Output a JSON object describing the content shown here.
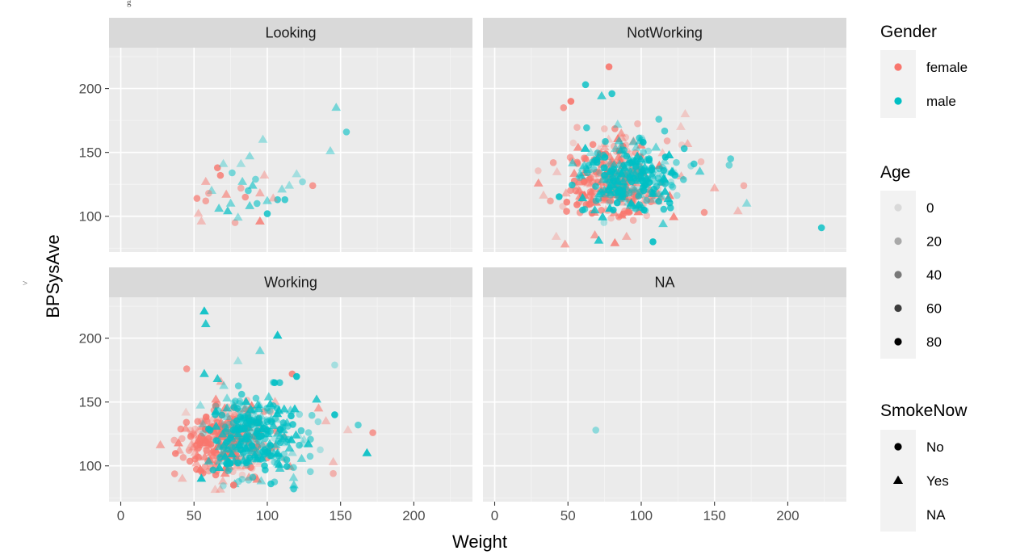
{
  "chart_data": {
    "type": "scatter",
    "xlabel": "Weight",
    "ylabel": "BPSysAve",
    "xlim": [
      -8,
      240
    ],
    "ylim": [
      72,
      232
    ],
    "x_ticks": [
      0,
      50,
      100,
      150,
      200
    ],
    "y_ticks": [
      100,
      150,
      200
    ],
    "grid": true,
    "facets": [
      "Looking",
      "NotWorking",
      "Working",
      "NA"
    ],
    "stray_text": {
      "top": "g",
      "left": ">"
    },
    "legend": {
      "placement": "right",
      "gender": {
        "title": "Gender",
        "entries": [
          {
            "label": "female",
            "color": "#F8766D"
          },
          {
            "label": "male",
            "color": "#00BFC4"
          }
        ]
      },
      "age": {
        "title": "Age",
        "entries": [
          {
            "label": "0",
            "alpha": 0.1
          },
          {
            "label": "20",
            "alpha": 0.3
          },
          {
            "label": "40",
            "alpha": 0.5
          },
          {
            "label": "60",
            "alpha": 0.75
          },
          {
            "label": "80",
            "alpha": 1.0
          }
        ]
      },
      "smoke": {
        "title": "SmokeNow",
        "entries": [
          {
            "label": "No",
            "shape": "circle"
          },
          {
            "label": "Yes",
            "shape": "triangle"
          },
          {
            "label": "NA",
            "shape": "none"
          }
        ]
      }
    },
    "panels": [
      {
        "facet": "Looking",
        "points": [
          {
            "x": 147,
            "y": 185,
            "g": "male",
            "s": "Yes",
            "a": 0.5
          },
          {
            "x": 154,
            "y": 166,
            "g": "male",
            "s": "No",
            "a": 0.6
          },
          {
            "x": 143,
            "y": 151,
            "g": "male",
            "s": "Yes",
            "a": 0.4
          },
          {
            "x": 97,
            "y": 160,
            "g": "male",
            "s": "Yes",
            "a": 0.35
          },
          {
            "x": 88,
            "y": 147,
            "g": "male",
            "s": "Yes",
            "a": 0.4
          },
          {
            "x": 82,
            "y": 141,
            "g": "male",
            "s": "Yes",
            "a": 0.3
          },
          {
            "x": 66,
            "y": 138,
            "g": "female",
            "s": "No",
            "a": 0.8
          },
          {
            "x": 68,
            "y": 132,
            "g": "female",
            "s": "No",
            "a": 0.8
          },
          {
            "x": 58,
            "y": 127,
            "g": "female",
            "s": "Yes",
            "a": 0.5
          },
          {
            "x": 76,
            "y": 134,
            "g": "male",
            "s": "No",
            "a": 0.5
          },
          {
            "x": 70,
            "y": 141,
            "g": "male",
            "s": "Yes",
            "a": 0.35
          },
          {
            "x": 83,
            "y": 127,
            "g": "male",
            "s": "Yes",
            "a": 0.5
          },
          {
            "x": 90,
            "y": 124,
            "g": "male",
            "s": "Yes",
            "a": 0.6
          },
          {
            "x": 95,
            "y": 118,
            "g": "female",
            "s": "Yes",
            "a": 0.5
          },
          {
            "x": 100,
            "y": 112,
            "g": "male",
            "s": "Yes",
            "a": 0.5
          },
          {
            "x": 107,
            "y": 113,
            "g": "male",
            "s": "No",
            "a": 0.7
          },
          {
            "x": 112,
            "y": 113,
            "g": "male",
            "s": "No",
            "a": 0.7
          },
          {
            "x": 120,
            "y": 133,
            "g": "male",
            "s": "Yes",
            "a": 0.3
          },
          {
            "x": 124,
            "y": 127,
            "g": "male",
            "s": "No",
            "a": 0.4
          },
          {
            "x": 131,
            "y": 124,
            "g": "female",
            "s": "No",
            "a": 0.7
          },
          {
            "x": 100,
            "y": 102,
            "g": "male",
            "s": "No",
            "a": 0.8
          },
          {
            "x": 95,
            "y": 96,
            "g": "female",
            "s": "Yes",
            "a": 0.8
          },
          {
            "x": 78,
            "y": 95,
            "g": "female",
            "s": "No",
            "a": 0.5
          },
          {
            "x": 80,
            "y": 99,
            "g": "male",
            "s": "Yes",
            "a": 0.4
          },
          {
            "x": 55,
            "y": 96,
            "g": "female",
            "s": "Yes",
            "a": 0.4
          },
          {
            "x": 53,
            "y": 102,
            "g": "female",
            "s": "Yes",
            "a": 0.4
          },
          {
            "x": 52,
            "y": 114,
            "g": "female",
            "s": "No",
            "a": 0.7
          },
          {
            "x": 58,
            "y": 112,
            "g": "female",
            "s": "No",
            "a": 0.6
          },
          {
            "x": 62,
            "y": 120,
            "g": "male",
            "s": "Yes",
            "a": 0.4
          },
          {
            "x": 72,
            "y": 117,
            "g": "female",
            "s": "Yes",
            "a": 0.6
          },
          {
            "x": 75,
            "y": 110,
            "g": "male",
            "s": "Yes",
            "a": 0.5
          },
          {
            "x": 85,
            "y": 115,
            "g": "female",
            "s": "No",
            "a": 0.7
          },
          {
            "x": 88,
            "y": 108,
            "g": "male",
            "s": "Yes",
            "a": 0.6
          },
          {
            "x": 92,
            "y": 129,
            "g": "male",
            "s": "No",
            "a": 0.5
          },
          {
            "x": 104,
            "y": 114,
            "g": "female",
            "s": "Yes",
            "a": 0.4
          },
          {
            "x": 110,
            "y": 121,
            "g": "male",
            "s": "Yes",
            "a": 0.4
          },
          {
            "x": 67,
            "y": 106,
            "g": "male",
            "s": "Yes",
            "a": 0.6
          },
          {
            "x": 73,
            "y": 104,
            "g": "male",
            "s": "Yes",
            "a": 0.7
          },
          {
            "x": 82,
            "y": 122,
            "g": "female",
            "s": "No",
            "a": 0.5
          },
          {
            "x": 98,
            "y": 132,
            "g": "female",
            "s": "Yes",
            "a": 0.4
          },
          {
            "x": 115,
            "y": 124,
            "g": "male",
            "s": "Yes",
            "a": 0.35
          },
          {
            "x": 60,
            "y": 118,
            "g": "female",
            "s": "No",
            "a": 0.5
          },
          {
            "x": 87,
            "y": 120,
            "g": "male",
            "s": "No",
            "a": 0.6
          },
          {
            "x": 93,
            "y": 110,
            "g": "male",
            "s": "No",
            "a": 0.6
          }
        ]
      },
      {
        "facet": "NotWorking",
        "cloud": [
          {
            "x": 82,
            "y": 128,
            "n": 260,
            "g": "female",
            "sx": 17,
            "sy": 15
          },
          {
            "x": 92,
            "y": 130,
            "n": 260,
            "g": "male",
            "sx": 17,
            "sy": 15
          }
        ],
        "points": [
          {
            "x": 78,
            "y": 217,
            "g": "female",
            "s": "No",
            "a": 0.9
          },
          {
            "x": 62,
            "y": 203,
            "g": "male",
            "s": "No",
            "a": 0.8
          },
          {
            "x": 73,
            "y": 194,
            "g": "male",
            "s": "Yes",
            "a": 0.7
          },
          {
            "x": 80,
            "y": 196,
            "g": "male",
            "s": "No",
            "a": 0.8
          },
          {
            "x": 52,
            "y": 190,
            "g": "female",
            "s": "No",
            "a": 0.9
          },
          {
            "x": 47,
            "y": 185,
            "g": "female",
            "s": "No",
            "a": 0.7
          },
          {
            "x": 112,
            "y": 176,
            "g": "male",
            "s": "No",
            "a": 0.6
          },
          {
            "x": 127,
            "y": 170,
            "g": "female",
            "s": "Yes",
            "a": 0.3
          },
          {
            "x": 161,
            "y": 145,
            "g": "male",
            "s": "No",
            "a": 0.6
          },
          {
            "x": 160,
            "y": 140,
            "g": "male",
            "s": "No",
            "a": 0.5
          },
          {
            "x": 170,
            "y": 124,
            "g": "female",
            "s": "No",
            "a": 0.5
          },
          {
            "x": 166,
            "y": 104,
            "g": "female",
            "s": "Yes",
            "a": 0.4
          },
          {
            "x": 172,
            "y": 110,
            "g": "male",
            "s": "Yes",
            "a": 0.4
          },
          {
            "x": 223,
            "y": 91,
            "g": "male",
            "s": "No",
            "a": 0.8
          },
          {
            "x": 143,
            "y": 103,
            "g": "female",
            "s": "No",
            "a": 0.7
          },
          {
            "x": 150,
            "y": 122,
            "g": "female",
            "s": "Yes",
            "a": 0.5
          },
          {
            "x": 140,
            "y": 135,
            "g": "male",
            "s": "Yes",
            "a": 0.6
          },
          {
            "x": 136,
            "y": 141,
            "g": "male",
            "s": "No",
            "a": 0.7
          },
          {
            "x": 108,
            "y": 80,
            "g": "male",
            "s": "No",
            "a": 0.9
          },
          {
            "x": 71,
            "y": 81,
            "g": "male",
            "s": "Yes",
            "a": 0.8
          },
          {
            "x": 48,
            "y": 78,
            "g": "female",
            "s": "Yes",
            "a": 0.6
          },
          {
            "x": 42,
            "y": 84,
            "g": "female",
            "s": "Yes",
            "a": 0.3
          },
          {
            "x": 90,
            "y": 84,
            "g": "female",
            "s": "Yes",
            "a": 0.5
          },
          {
            "x": 82,
            "y": 79,
            "g": "female",
            "s": "Yes",
            "a": 0.8
          },
          {
            "x": 40,
            "y": 142,
            "g": "female",
            "s": "No",
            "a": 0.6
          },
          {
            "x": 38,
            "y": 112,
            "g": "female",
            "s": "No",
            "a": 0.6
          },
          {
            "x": 130,
            "y": 180,
            "g": "female",
            "s": "Yes",
            "a": 0.3
          }
        ]
      },
      {
        "facet": "Working",
        "cloud": [
          {
            "x": 72,
            "y": 120,
            "n": 280,
            "g": "female",
            "sx": 15,
            "sy": 14
          },
          {
            "x": 92,
            "y": 124,
            "n": 300,
            "g": "male",
            "sx": 17,
            "sy": 15
          }
        ],
        "points": [
          {
            "x": 57,
            "y": 221,
            "g": "male",
            "s": "Yes",
            "a": 0.9
          },
          {
            "x": 58,
            "y": 211,
            "g": "male",
            "s": "Yes",
            "a": 0.8
          },
          {
            "x": 107,
            "y": 202,
            "g": "male",
            "s": "Yes",
            "a": 0.9
          },
          {
            "x": 95,
            "y": 190,
            "g": "male",
            "s": "Yes",
            "a": 0.5
          },
          {
            "x": 80,
            "y": 182,
            "g": "male",
            "s": "Yes",
            "a": 0.3
          },
          {
            "x": 146,
            "y": 179,
            "g": "male",
            "s": "No",
            "a": 0.3
          },
          {
            "x": 45,
            "y": 176,
            "g": "female",
            "s": "No",
            "a": 0.7
          },
          {
            "x": 117,
            "y": 172,
            "g": "female",
            "s": "No",
            "a": 0.8
          },
          {
            "x": 57,
            "y": 172,
            "g": "male",
            "s": "Yes",
            "a": 0.8
          },
          {
            "x": 66,
            "y": 168,
            "g": "male",
            "s": "Yes",
            "a": 0.8
          },
          {
            "x": 120,
            "y": 170,
            "g": "male",
            "s": "No",
            "a": 0.9
          },
          {
            "x": 172,
            "y": 126,
            "g": "female",
            "s": "No",
            "a": 0.7
          },
          {
            "x": 168,
            "y": 110,
            "g": "male",
            "s": "Yes",
            "a": 0.9
          },
          {
            "x": 155,
            "y": 128,
            "g": "female",
            "s": "Yes",
            "a": 0.3
          },
          {
            "x": 145,
            "y": 94,
            "g": "female",
            "s": "No",
            "a": 0.5
          },
          {
            "x": 145,
            "y": 103,
            "g": "female",
            "s": "Yes",
            "a": 0.4
          },
          {
            "x": 162,
            "y": 132,
            "g": "male",
            "s": "No",
            "a": 0.6
          },
          {
            "x": 146,
            "y": 140,
            "g": "male",
            "s": "No",
            "a": 0.9
          },
          {
            "x": 118,
            "y": 82,
            "g": "male",
            "s": "No",
            "a": 0.7
          },
          {
            "x": 77,
            "y": 85,
            "g": "female",
            "s": "No",
            "a": 0.9
          },
          {
            "x": 42,
            "y": 90,
            "g": "female",
            "s": "Yes",
            "a": 0.4
          },
          {
            "x": 55,
            "y": 90,
            "g": "male",
            "s": "Yes",
            "a": 0.9
          },
          {
            "x": 40,
            "y": 112,
            "g": "female",
            "s": "Yes",
            "a": 0.5
          },
          {
            "x": 135,
            "y": 145,
            "g": "female",
            "s": "Yes",
            "a": 0.6
          },
          {
            "x": 140,
            "y": 135,
            "g": "female",
            "s": "Yes",
            "a": 0.4
          }
        ]
      },
      {
        "facet": "NA",
        "points": [
          {
            "x": 69,
            "y": 128,
            "g": "male",
            "s": "No",
            "a": 0.4
          }
        ]
      }
    ]
  }
}
